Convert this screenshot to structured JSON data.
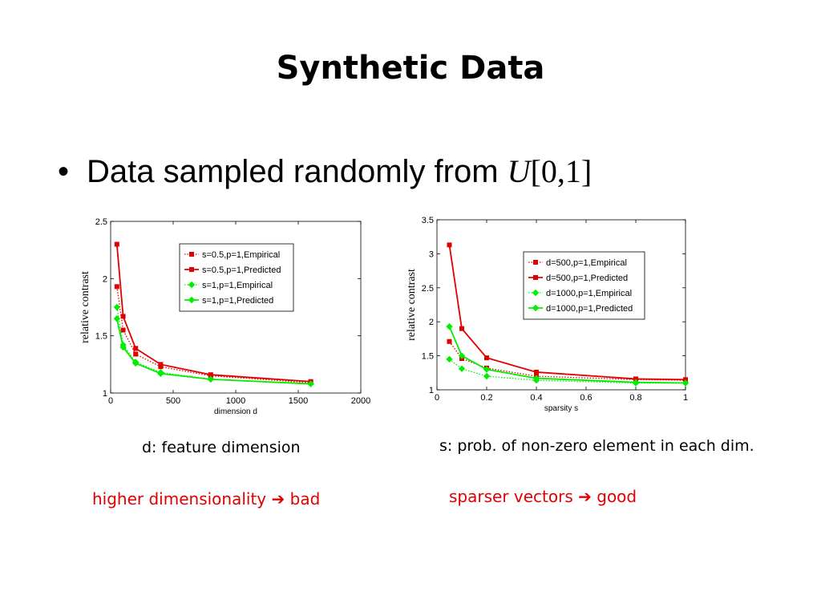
{
  "slide": {
    "title": "Synthetic Data",
    "bullet": {
      "symbol": "•",
      "text": "Data sampled randomly from ",
      "math_var": "U",
      "math_range": "[0,1]"
    },
    "captions": {
      "left": "d: feature dimension",
      "right": "s: prob. of non-zero element in each dim."
    },
    "conclusions": {
      "left": {
        "text": "higher dimensionality",
        "arrow": "➔",
        "result": "bad"
      },
      "right": {
        "text": "sparser vectors",
        "arrow": "➔",
        "result": "good"
      }
    },
    "colors": {
      "red": "#e00000",
      "green": "#00ee00",
      "accent": "#e00000"
    }
  },
  "chart_data": [
    {
      "type": "line",
      "xlabel": "dimension d",
      "ylabel": "relative contrast",
      "xlim": [
        0,
        2000
      ],
      "ylim": [
        1,
        2.5
      ],
      "xticks": [
        0,
        500,
        1000,
        1500,
        2000
      ],
      "yticks": [
        1,
        1.5,
        2,
        2.5
      ],
      "xtick_labels": [
        "0",
        "500",
        "1000",
        "1500",
        "2000"
      ],
      "ytick_labels": [
        "1",
        "1.5",
        "2",
        "2.5"
      ],
      "legend_position": "top-right",
      "x": [
        50,
        100,
        200,
        400,
        800,
        1600
      ],
      "series": [
        {
          "name": "s=0.5,p=1,Empirical",
          "color": "#e00000",
          "style": "dotted",
          "marker": "square",
          "values": [
            1.93,
            1.55,
            1.34,
            1.23,
            1.15,
            1.09
          ]
        },
        {
          "name": "s=0.5,p=1,Predicted",
          "color": "#e00000",
          "style": "solid",
          "marker": "square",
          "values": [
            2.3,
            1.67,
            1.39,
            1.25,
            1.16,
            1.1
          ]
        },
        {
          "name": "s=1,p=1,Empirical",
          "color": "#00ee00",
          "style": "dotted",
          "marker": "diamond",
          "values": [
            1.75,
            1.42,
            1.27,
            1.18,
            1.12,
            1.08
          ]
        },
        {
          "name": "s=1,p=1,Predicted",
          "color": "#00ee00",
          "style": "solid",
          "marker": "diamond",
          "values": [
            1.65,
            1.4,
            1.26,
            1.17,
            1.12,
            1.08
          ]
        }
      ]
    },
    {
      "type": "line",
      "xlabel": "sparsity s",
      "ylabel": "relative contrast",
      "xlim": [
        0,
        1
      ],
      "ylim": [
        1,
        3.5
      ],
      "xticks": [
        0,
        0.2,
        0.4,
        0.6,
        0.8,
        1
      ],
      "yticks": [
        1,
        1.5,
        2,
        2.5,
        3,
        3.5
      ],
      "xtick_labels": [
        "0",
        "0.2",
        "0.4",
        "0.6",
        "0.8",
        "1"
      ],
      "ytick_labels": [
        "1",
        "1.5",
        "2",
        "2.5",
        "3",
        "3.5"
      ],
      "legend_position": "top-right",
      "x": [
        0.05,
        0.1,
        0.2,
        0.4,
        0.8,
        1.0
      ],
      "series": [
        {
          "name": "d=500,p=1,Empirical",
          "color": "#e00000",
          "style": "dotted",
          "marker": "square",
          "values": [
            1.71,
            1.46,
            1.32,
            1.2,
            1.15,
            1.14
          ]
        },
        {
          "name": "d=500,p=1,Predicted",
          "color": "#e00000",
          "style": "solid",
          "marker": "square",
          "values": [
            3.13,
            1.9,
            1.47,
            1.26,
            1.16,
            1.15
          ]
        },
        {
          "name": "d=1000,p=1,Empirical",
          "color": "#00ee00",
          "style": "dotted",
          "marker": "diamond",
          "values": [
            1.45,
            1.31,
            1.2,
            1.14,
            1.1,
            1.1
          ]
        },
        {
          "name": "d=1000,p=1,Predicted",
          "color": "#00ee00",
          "style": "solid",
          "marker": "diamond",
          "values": [
            1.93,
            1.5,
            1.3,
            1.17,
            1.11,
            1.1
          ]
        }
      ]
    }
  ]
}
